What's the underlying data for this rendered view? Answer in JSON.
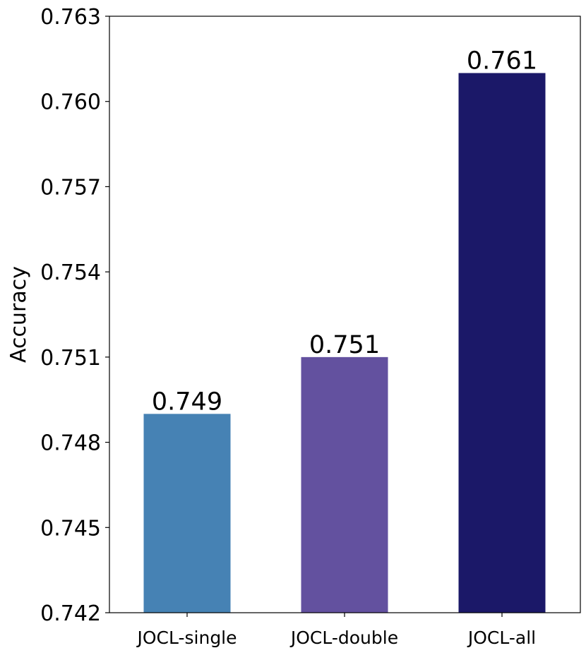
{
  "chart_data": {
    "type": "bar",
    "categories": [
      "JOCL-single",
      "JOCL-double",
      "JOCL-all"
    ],
    "values": [
      0.749,
      0.751,
      0.761
    ],
    "value_labels": [
      "0.749",
      "0.751",
      "0.761"
    ],
    "colors": [
      "#4682b4",
      "#63519f",
      "#1b1868"
    ],
    "ylabel": "Accuracy",
    "xlabel": "",
    "ylim": [
      0.742,
      0.763
    ],
    "yticks": [
      0.742,
      0.745,
      0.748,
      0.751,
      0.754,
      0.757,
      0.76,
      0.763
    ],
    "ytick_labels": [
      "0.742",
      "0.745",
      "0.748",
      "0.751",
      "0.754",
      "0.757",
      "0.760",
      "0.763"
    ],
    "grid": false,
    "legend": "none"
  }
}
